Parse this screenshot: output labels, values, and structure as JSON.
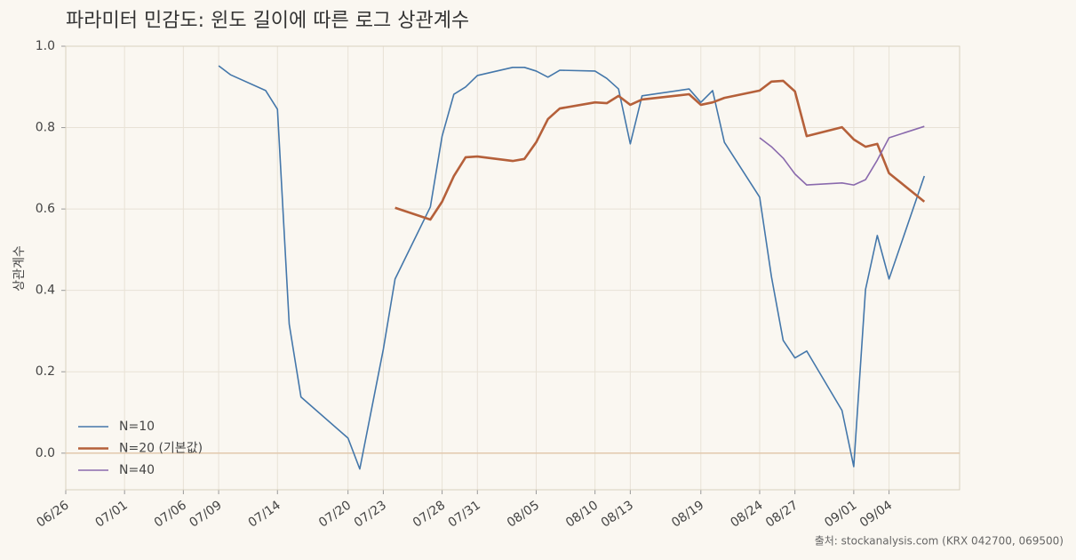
{
  "chart_data": {
    "type": "line",
    "title": "파라미터 민감도: 윈도 길이에 따른 로그 상관계수",
    "y_label": "상관계수",
    "source": "출처: stockanalysis.com (KRX 042700, 069500)",
    "xlim": [
      "06/26",
      "09/10"
    ],
    "xticks": [
      "06/26",
      "07/01",
      "07/06",
      "07/09",
      "07/14",
      "07/20",
      "07/23",
      "07/28",
      "07/31",
      "08/05",
      "08/10",
      "08/13",
      "08/19",
      "08/24",
      "08/27",
      "09/01",
      "09/04"
    ],
    "ylim": [
      -0.09,
      1.0
    ],
    "yticks": [
      {
        "value": 0,
        "label": "0.0"
      },
      0.2,
      0.4,
      0.6,
      0.8,
      {
        "value": 1,
        "label": "1.0"
      }
    ],
    "grid": true,
    "reference_line": 0,
    "legend": "lower-left",
    "series": [
      {
        "name": "N=10",
        "color": "#4477aa",
        "width": 1.6,
        "x": [
          "07/09",
          "07/10",
          "07/13",
          "07/14",
          "07/15",
          "07/16",
          "07/20",
          "07/21",
          "07/23",
          "07/24",
          "07/27",
          "07/28",
          "07/29",
          "07/30",
          "07/31",
          "08/03",
          "08/04",
          "08/05",
          "08/06",
          "08/07",
          "08/10",
          "08/11",
          "08/12",
          "08/13",
          "08/14",
          "08/18",
          "08/19",
          "08/20",
          "08/21",
          "08/24",
          "08/25",
          "08/26",
          "08/27",
          "08/28",
          "08/31",
          "09/01",
          "09/02",
          "09/03",
          "09/04",
          "09/07"
        ],
        "values": [
          0.952,
          0.93,
          0.891,
          0.845,
          0.317,
          0.138,
          0.037,
          -0.039,
          0.255,
          0.428,
          0.605,
          0.779,
          0.882,
          0.9,
          0.928,
          0.948,
          0.948,
          0.939,
          0.924,
          0.941,
          0.939,
          0.921,
          0.895,
          0.76,
          0.878,
          0.895,
          0.862,
          0.891,
          0.764,
          0.629,
          0.434,
          0.277,
          0.234,
          0.251,
          0.105,
          -0.033,
          0.402,
          0.535,
          0.428,
          0.681
        ]
      },
      {
        "name": "N=20 (기본값)",
        "color": "#b5603a",
        "width": 2.6,
        "x": [
          "07/24",
          "07/27",
          "07/28",
          "07/29",
          "07/30",
          "07/31",
          "08/03",
          "08/04",
          "08/05",
          "08/06",
          "08/07",
          "08/10",
          "08/11",
          "08/12",
          "08/13",
          "08/14",
          "08/18",
          "08/19",
          "08/20",
          "08/21",
          "08/24",
          "08/25",
          "08/26",
          "08/27",
          "08/28",
          "08/31",
          "09/01",
          "09/02",
          "09/03",
          "09/04",
          "09/07"
        ],
        "values": [
          0.603,
          0.574,
          0.618,
          0.681,
          0.727,
          0.729,
          0.718,
          0.723,
          0.764,
          0.821,
          0.847,
          0.862,
          0.86,
          0.878,
          0.856,
          0.869,
          0.882,
          0.856,
          0.862,
          0.873,
          0.891,
          0.913,
          0.915,
          0.889,
          0.779,
          0.801,
          0.771,
          0.753,
          0.76,
          0.688,
          0.618
        ]
      },
      {
        "name": "N=40",
        "color": "#8a6aad",
        "width": 1.6,
        "x": [
          "08/24",
          "08/25",
          "08/26",
          "08/27",
          "08/28",
          "08/31",
          "09/01",
          "09/02",
          "09/03",
          "09/04",
          "09/07"
        ],
        "values": [
          0.775,
          0.753,
          0.725,
          0.686,
          0.659,
          0.664,
          0.659,
          0.672,
          0.72,
          0.775,
          0.803
        ]
      }
    ]
  }
}
